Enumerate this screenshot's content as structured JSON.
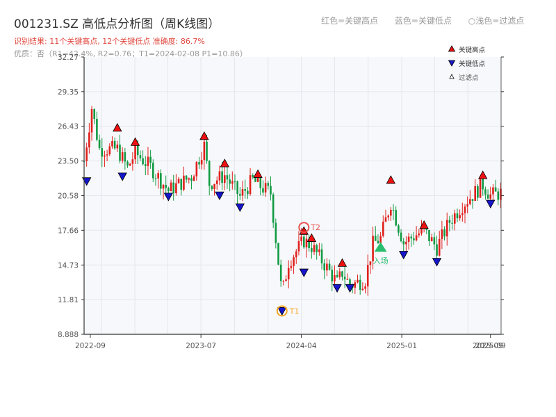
{
  "title": "001231.SZ 高低点分析图（周K线图）",
  "result_line": "识别结果: 11个关键高点, 12个关键低点  准确度: 86.7%",
  "quality_line": "优质：否（R1=42.4%, R2=0.76；T1=2024-02-08 P1=10.86）",
  "header_legend": [
    "红色=关键高点",
    "蓝色=关键低点",
    "○浅色=过滤点"
  ],
  "colors": {
    "up": "#e0201c",
    "down": "#119a43",
    "high_marker": "#ee1111",
    "low_marker": "#1515cc",
    "plot_bg": "#f7f8fb",
    "grid": "#e3e6eb",
    "t1": "#f5a623",
    "t2": "#e85550",
    "entry": "#2bbd6e"
  },
  "chart_data": {
    "type": "candlestick",
    "title": "001231.SZ 高低点分析图（周K线图）",
    "x_axis": {
      "type": "date",
      "range": [
        "2022-08-15",
        "2025-09-30"
      ],
      "tick_labels": [
        "2022-09",
        "2023-07",
        "2024-04",
        "2025-01",
        "2025-09"
      ]
    },
    "y_axis": {
      "range": [
        8.888,
        32.27
      ],
      "tick_labels": [
        "8.888",
        "11.81",
        "14.73",
        "17.66",
        "20.58",
        "23.50",
        "26.43",
        "29.35",
        "32.27"
      ]
    },
    "grid": true,
    "legend": {
      "placement": "top-right",
      "entries": [
        {
          "name": "关键高点",
          "icon": "red-up-triangle"
        },
        {
          "name": "关键低点",
          "icon": "blue-down-triangle"
        },
        {
          "name": "过滤点",
          "icon": "small-white-up-triangle"
        }
      ]
    },
    "key_highs": [
      {
        "date": "2022-11-14",
        "value": 26.3
      },
      {
        "date": "2023-01-02",
        "value": 25.1
      },
      {
        "date": "2023-07-10",
        "value": 25.6
      },
      {
        "date": "2023-09-04",
        "value": 23.3
      },
      {
        "date": "2023-12-04",
        "value": 22.4
      },
      {
        "date": "2024-04-08",
        "value": 17.6
      },
      {
        "date": "2024-04-29",
        "value": 17.0
      },
      {
        "date": "2024-07-22",
        "value": 14.9
      },
      {
        "date": "2024-12-02",
        "value": 21.9
      },
      {
        "date": "2025-03-03",
        "value": 18.1
      },
      {
        "date": "2025-08-11",
        "value": 22.3
      }
    ],
    "key_lows": [
      {
        "date": "2022-08-22",
        "value": 21.8
      },
      {
        "date": "2022-11-28",
        "value": 22.2
      },
      {
        "date": "2023-04-03",
        "value": 20.5
      },
      {
        "date": "2023-08-21",
        "value": 20.6
      },
      {
        "date": "2023-10-16",
        "value": 19.6
      },
      {
        "date": "2024-02-08",
        "value": 10.86
      },
      {
        "date": "2024-04-08",
        "value": 14.1
      },
      {
        "date": "2024-07-08",
        "value": 12.8
      },
      {
        "date": "2024-08-12",
        "value": 12.8
      },
      {
        "date": "2025-01-06",
        "value": 15.6
      },
      {
        "date": "2025-04-07",
        "value": 15.0
      },
      {
        "date": "2025-09-01",
        "value": 19.9
      }
    ],
    "annotations": [
      {
        "label": "T1",
        "date": "2024-02-08",
        "value": 10.86
      },
      {
        "label": "T2",
        "date": "2024-04-08",
        "value": 17.9
      },
      {
        "label": "入场",
        "date": "2024-11-04",
        "value": 16.2
      }
    ],
    "weekly_close_anchors": [
      {
        "date": "2022-08-15",
        "value": 23.5
      },
      {
        "date": "2022-09-05",
        "value": 28.0
      },
      {
        "date": "2022-09-26",
        "value": 24.5
      },
      {
        "date": "2022-11-14",
        "value": 24.5
      },
      {
        "date": "2022-12-12",
        "value": 22.9
      },
      {
        "date": "2023-01-02",
        "value": 24.2
      },
      {
        "date": "2023-02-13",
        "value": 23.0
      },
      {
        "date": "2023-04-03",
        "value": 21.0
      },
      {
        "date": "2023-06-05",
        "value": 22.2
      },
      {
        "date": "2023-07-10",
        "value": 24.8
      },
      {
        "date": "2023-07-24",
        "value": 21.6
      },
      {
        "date": "2023-09-04",
        "value": 22.3
      },
      {
        "date": "2023-10-16",
        "value": 20.5
      },
      {
        "date": "2023-11-20",
        "value": 21.9
      },
      {
        "date": "2023-12-04",
        "value": 21.5
      },
      {
        "date": "2024-01-08",
        "value": 20.8
      },
      {
        "date": "2024-01-29",
        "value": 15.0
      },
      {
        "date": "2024-02-08",
        "value": 12.2
      },
      {
        "date": "2024-02-26",
        "value": 15.0
      },
      {
        "date": "2024-04-08",
        "value": 16.8
      },
      {
        "date": "2024-04-29",
        "value": 16.3
      },
      {
        "date": "2024-06-10",
        "value": 14.5
      },
      {
        "date": "2024-07-08",
        "value": 13.2
      },
      {
        "date": "2024-07-22",
        "value": 14.1
      },
      {
        "date": "2024-08-12",
        "value": 13.0
      },
      {
        "date": "2024-09-23",
        "value": 13.5
      },
      {
        "date": "2024-10-14",
        "value": 16.5
      },
      {
        "date": "2024-11-04",
        "value": 17.0
      },
      {
        "date": "2024-12-02",
        "value": 20.0
      },
      {
        "date": "2025-01-06",
        "value": 16.6
      },
      {
        "date": "2025-02-10",
        "value": 17.3
      },
      {
        "date": "2025-03-03",
        "value": 17.6
      },
      {
        "date": "2025-04-07",
        "value": 16.2
      },
      {
        "date": "2025-05-12",
        "value": 18.4
      },
      {
        "date": "2025-06-16",
        "value": 19.8
      },
      {
        "date": "2025-08-11",
        "value": 21.5
      },
      {
        "date": "2025-09-01",
        "value": 20.6
      },
      {
        "date": "2025-09-30",
        "value": 20.8
      }
    ]
  }
}
